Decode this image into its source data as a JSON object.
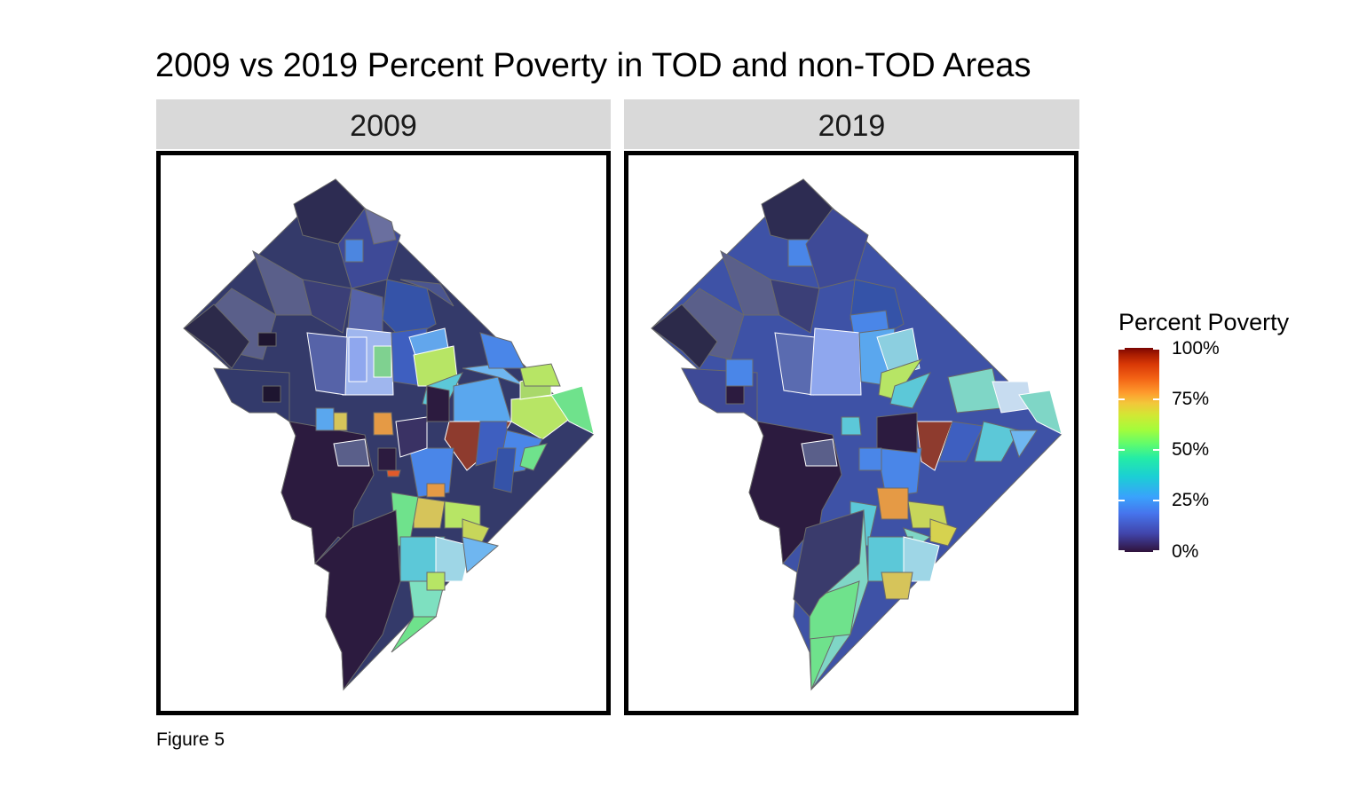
{
  "title": "2009 vs 2019 Percent Poverty in TOD and non-TOD Areas",
  "panels": [
    {
      "label": "2009"
    },
    {
      "label": "2019"
    }
  ],
  "legend": {
    "title": "Percent Poverty",
    "ticks": [
      "100%",
      "75%",
      "50%",
      "25%",
      "0%"
    ],
    "scale": "turbo"
  },
  "caption": "Figure 5",
  "colors": {
    "dark": "#2c1b3f",
    "navy": "#333a6b",
    "slate": "#4a5590",
    "blue": "#3e5fc0",
    "lightblue": "#4a86e8",
    "sky": "#5aa7ee",
    "cyan": "#5cc8d8",
    "aqua": "#7fd6c6",
    "green": "#6fe28c",
    "lime": "#b7e565",
    "yellow": "#d6d24f",
    "orange": "#e59a45",
    "brick": "#8e3b2e"
  }
}
